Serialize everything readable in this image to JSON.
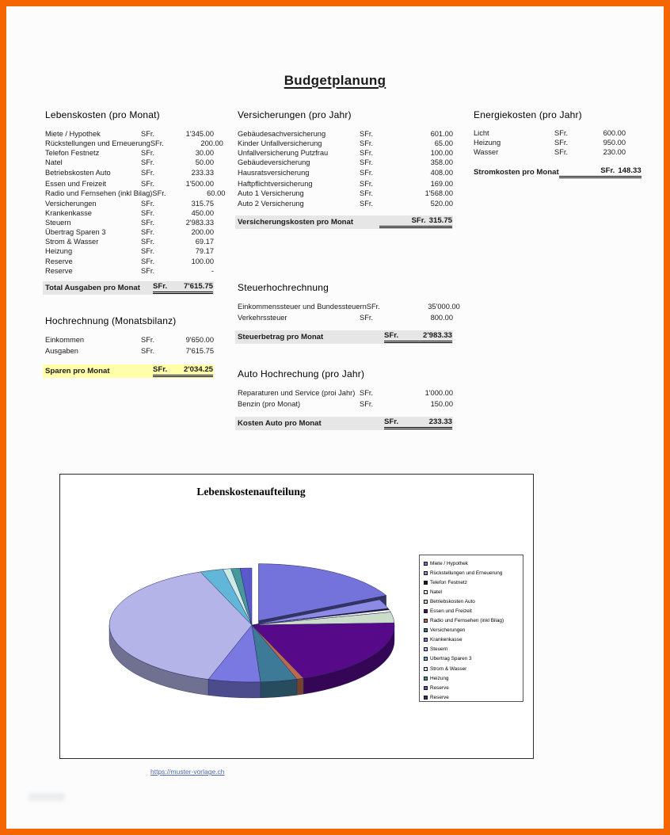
{
  "page": {
    "title": "Budgetplanung",
    "frame_color": "#f56600",
    "highlight_yellow": "#ffffaa",
    "row_gray": "#e6e6e6"
  },
  "lebenskosten": {
    "heading": "Lebenskosten (pro Monat)",
    "rows": [
      {
        "label": "Miete / Hypothek",
        "cur": "SFr.",
        "amount": "1'345.00"
      },
      {
        "label": "Rückstellungen und Erneuerung",
        "cur": "SFr.",
        "amount": "200.00"
      },
      {
        "label": "Telefon Festnetz",
        "cur": "SFr.",
        "amount": "30.00"
      },
      {
        "label": "Natel",
        "cur": "SFr.",
        "amount": "50.00"
      },
      {
        "label": "Betriebskosten Auto",
        "cur": "SFr.",
        "amount": "233.33"
      },
      {
        "label": "Essen und Freizeit",
        "cur": "SFr.",
        "amount": "1'500.00",
        "gap": true
      },
      {
        "label": "Radio und Fernsehen (inkl Bilag)",
        "cur": "SFr.",
        "amount": "60.00"
      },
      {
        "label": "Versicherungen",
        "cur": "SFr.",
        "amount": "315.75"
      },
      {
        "label": "Krankenkasse",
        "cur": "SFr.",
        "amount": "450.00"
      },
      {
        "label": "Steuern",
        "cur": "SFr.",
        "amount": "2'983.33"
      },
      {
        "label": "Übertrag Sparen 3",
        "cur": "SFr.",
        "amount": "200.00"
      },
      {
        "label": "Strom & Wasser",
        "cur": "SFr.",
        "amount": "69.17"
      },
      {
        "label": "Heizung",
        "cur": "SFr.",
        "amount": "79.17"
      },
      {
        "label": "Reserve",
        "cur": "SFr.",
        "amount": "100.00"
      },
      {
        "label": "Reserve",
        "cur": "SFr.",
        "amount": "-"
      }
    ],
    "total": {
      "label": "Total Ausgaben pro Monat",
      "cur": "SFr.",
      "amount": "7'615.75"
    }
  },
  "hochrechnung": {
    "heading": "Hochrechnung (Monatsbilanz)",
    "rows": [
      {
        "label": "Einkommen",
        "cur": "SFr.",
        "amount": "9'650.00"
      },
      {
        "label": "Ausgaben",
        "cur": "SFr.",
        "amount": "7'615.75"
      }
    ],
    "total": {
      "label": "Sparen pro Monat",
      "cur": "SFr.",
      "amount": "2'034.25"
    }
  },
  "versicherungen": {
    "heading": "Versicherungen (pro Jahr)",
    "rows": [
      {
        "label": "Gebäudesachversicherung",
        "cur": "SFr.",
        "amount": "601.00"
      },
      {
        "label": "Kinder Unfallversicherung",
        "cur": "SFr.",
        "amount": "65.00"
      },
      {
        "label": "Unfallversicherung Putzfrau",
        "cur": "SFr.",
        "amount": "100.00"
      },
      {
        "label": "Gebäudeversicherung",
        "cur": "SFr.",
        "amount": "358.00"
      },
      {
        "label": "Hausratsversicherung",
        "cur": "SFr.",
        "amount": "408.00"
      },
      {
        "label": "Haftpflichtversicherung",
        "cur": "SFr.",
        "amount": "169.00",
        "gap": true
      },
      {
        "label": "Auto 1 Versicherung",
        "cur": "SFr.",
        "amount": "1'568.00"
      },
      {
        "label": "Auto 2 Versicherung",
        "cur": "SFr.",
        "amount": "520.00"
      }
    ],
    "total": {
      "label": "Versicherungskosten pro Monat",
      "cur": "SFr.",
      "amount": "315.75"
    }
  },
  "steuer": {
    "heading": "Steuerhochrechnung",
    "rows": [
      {
        "label": "Einkommenssteuer und Bundessteuern",
        "cur": "SFr.",
        "amount": "35'000.00"
      },
      {
        "label": "Verkehrssteuer",
        "cur": "SFr.",
        "amount": "800.00"
      }
    ],
    "total": {
      "label": "Steuerbetrag pro Monat",
      "cur": "SFr.",
      "amount": "2'983.33"
    }
  },
  "auto": {
    "heading": "Auto Hochrechung (pro Jahr)",
    "rows": [
      {
        "label": "Reparaturen und Service (proi Jahr)",
        "cur": "SFr.",
        "amount": "1'000.00"
      },
      {
        "label": "Benzin (pro Monat)",
        "cur": "SFr.",
        "amount": "150.00"
      }
    ],
    "total": {
      "label": "Kosten Auto pro Monat",
      "cur": "SFr.",
      "amount": "233.33"
    }
  },
  "energie": {
    "heading": "Energiekosten (pro Jahr)",
    "rows": [
      {
        "label": "Licht",
        "cur": "SFr.",
        "amount": "600.00"
      },
      {
        "label": "Heizung",
        "cur": "SFr.",
        "amount": "950.00"
      },
      {
        "label": "Wasser",
        "cur": "SFr.",
        "amount": "230.00"
      }
    ],
    "total": {
      "label": "Stromkosten pro Monat",
      "cur": "SFr.",
      "amount": "148.33"
    }
  },
  "chart_data": {
    "type": "pie",
    "style": "3d-exploded",
    "title": "Lebenskostenaufteilung",
    "legend_position": "right",
    "total": 7615.75,
    "slices": [
      {
        "label": "Miete / Hypothek",
        "value": 1345.0,
        "color": "#7473dc",
        "exploded": true
      },
      {
        "label": "Rückstellungen und Erneuerung",
        "value": 200.0,
        "color": "#8b8ae4"
      },
      {
        "label": "Telefon Festnetz",
        "value": 30.0,
        "color": "#16162e"
      },
      {
        "label": "Natel",
        "value": 50.0,
        "color": "#f5f5ec"
      },
      {
        "label": "Betriebskosten Auto",
        "value": 233.33,
        "color": "#ccdccb"
      },
      {
        "label": "Essen und Freizeit",
        "value": 1500.0,
        "color": "#560a8a"
      },
      {
        "label": "Radio und Fernsehen (inkl Bilag)",
        "value": 60.0,
        "color": "#bc6a4d"
      },
      {
        "label": "Versicherungen",
        "value": 315.75,
        "color": "#3d7a98"
      },
      {
        "label": "Krankenkasse",
        "value": 450.0,
        "color": "#7a79e2"
      },
      {
        "label": "Steuern",
        "value": 2983.33,
        "color": "#b5b4e8"
      },
      {
        "label": "Übertrag Sparen 3",
        "value": 200.0,
        "color": "#62b6d8"
      },
      {
        "label": "Strom & Wasser",
        "value": 69.17,
        "color": "#cdebe6"
      },
      {
        "label": "Heizung",
        "value": 79.17,
        "color": "#47989b"
      },
      {
        "label": "Reserve",
        "value": 100.0,
        "color": "#5a59ce"
      },
      {
        "label": "Reserve",
        "value": 0,
        "color": "#333366"
      }
    ]
  },
  "footer": {
    "link": "https://muster-vorlage.ch"
  }
}
